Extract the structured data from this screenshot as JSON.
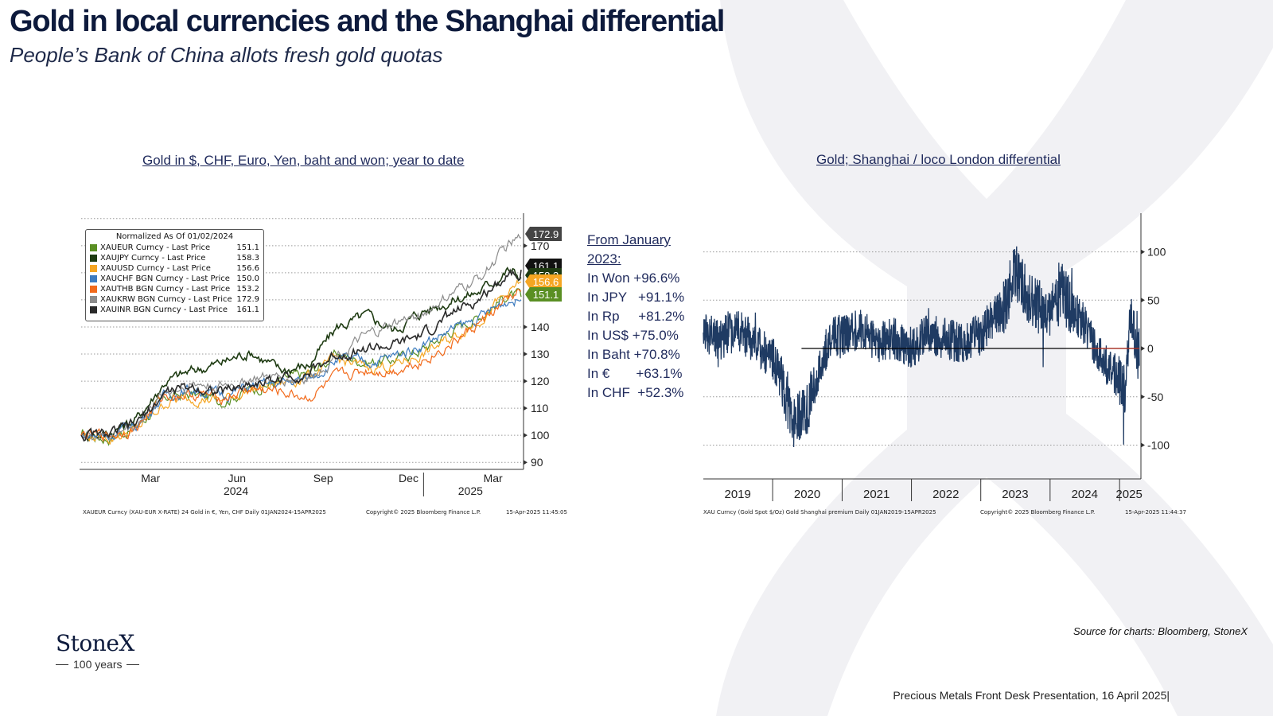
{
  "slide": {
    "title": "Gold in local currencies and the Shanghai differential",
    "subtitle": "People’s Bank of China allots fresh gold quotas",
    "source": "Source for charts: Bloomberg, StoneX",
    "footer": "Precious Metals Front Desk Presentation, 16 April 2025|",
    "logo_text": "StoneX",
    "logo_sub": "100 years"
  },
  "colors": {
    "navy": "#1f3b63",
    "eur": "#5a8f23",
    "jpy": "#1e3b12",
    "usd": "#f5a623",
    "chf": "#3d7bbf",
    "thb": "#f26a1b",
    "krw": "#8c8c8c",
    "inr": "#2a2a2a"
  },
  "performance": {
    "heading_line1": "From January",
    "heading_line2": "2023:",
    "rows": [
      {
        "label": "In Won",
        "gap": " ",
        "value": "+96.6%"
      },
      {
        "label": "In JPY",
        "gap": "   ",
        "value": "+91.1%"
      },
      {
        "label": "In Rp",
        "gap": "     ",
        "value": "+81.2%"
      },
      {
        "label": "In US$",
        "gap": " ",
        "value": "+75.0%"
      },
      {
        "label": "In Baht",
        "gap": " ",
        "value": "+70.8%"
      },
      {
        "label": "In €",
        "gap": "       ",
        "value": "+63.1%"
      },
      {
        "label": "In CHF",
        "gap": "  ",
        "value": "+52.3%"
      }
    ]
  },
  "chart_data": [
    {
      "type": "line",
      "title": "Gold in $, CHF, Euro, Yen, baht and won; year to date",
      "legend_title": "Normalized As Of 01/02/2024",
      "legend_position": "top-left",
      "x_ticks": [
        "Mar",
        "Jun",
        "Sep",
        "Dec",
        "Mar"
      ],
      "x_years": [
        "2024",
        "2025"
      ],
      "y_ticks": [
        90,
        100,
        110,
        120,
        130,
        140,
        170
      ],
      "ylim": [
        88,
        182
      ],
      "grid": true,
      "end_labels": [
        "172.9",
        "161.1",
        "158.3",
        "156.6",
        "151.1"
      ],
      "footnote_left": "XAUEUR Curncy (XAU-EUR X-RATE) 24 Gold in €, Yen, CHF  Daily 01JAN2024-15APR2025",
      "footnote_mid": "Copyright© 2025 Bloomberg Finance L.P.",
      "footnote_right": "15-Apr-2025 11:45:05",
      "x": [
        "2024-01-02",
        "2024-02-01",
        "2024-03-01",
        "2024-04-01",
        "2024-05-01",
        "2024-06-01",
        "2024-07-01",
        "2024-08-01",
        "2024-09-01",
        "2024-10-01",
        "2024-11-01",
        "2024-12-01",
        "2025-01-01",
        "2025-02-01",
        "2025-03-01",
        "2025-04-01",
        "2025-04-15"
      ],
      "series": [
        {
          "name": "XAUEUR Curncy - Last Price",
          "value": "151.1",
          "color_key": "eur",
          "values": [
            100,
            99,
            103,
            114,
            115,
            113,
            117,
            120,
            123,
            130,
            127,
            128,
            132,
            139,
            144,
            152,
            151.1
          ]
        },
        {
          "name": "XAUJPY Curncy - Last Price",
          "value": "158.3",
          "color_key": "jpy",
          "values": [
            100,
            101,
            106,
            120,
            124,
            127,
            131,
            124,
            126,
            140,
            144,
            139,
            146,
            150,
            153,
            161,
            158.3
          ]
        },
        {
          "name": "XAUUSD Curncy - Last Price",
          "value": "156.6",
          "color_key": "usd",
          "values": [
            100,
            99,
            102,
            112,
            114,
            113,
            117,
            119,
            122,
            128,
            125,
            126,
            130,
            136,
            143,
            152,
            156.6
          ]
        },
        {
          "name": "XAUCHF BGN Curncy - Last Price",
          "value": "150.0",
          "color_key": "chf",
          "values": [
            100,
            100,
            104,
            115,
            117,
            115,
            118,
            119,
            121,
            128,
            127,
            129,
            134,
            139,
            143,
            150,
            150.0
          ]
        },
        {
          "name": "XAUTHB BGN Curncy - Last Price",
          "value": "153.2",
          "color_key": "thb",
          "values": [
            100,
            100,
            103,
            115,
            115,
            114,
            117,
            116,
            114,
            121,
            124,
            124,
            128,
            134,
            141,
            150,
            153.2
          ]
        },
        {
          "name": "XAUKRW BGN Curncy - Last Price",
          "value": "172.9",
          "color_key": "krw",
          "values": [
            100,
            100,
            104,
            116,
            119,
            118,
            121,
            121,
            121,
            130,
            136,
            141,
            145,
            152,
            158,
            170,
            172.9
          ]
        },
        {
          "name": "XAUINR BGN Curncy - Last Price",
          "value": "161.1",
          "color_key": "inr",
          "values": [
            100,
            100,
            104,
            116,
            118,
            116,
            119,
            121,
            123,
            130,
            132,
            133,
            137,
            145,
            150,
            160,
            161.1
          ]
        }
      ]
    },
    {
      "type": "line",
      "title": "Gold; Shanghai / loco London differential",
      "x_ticks": [
        "2019",
        "2020",
        "2021",
        "2022",
        "2023",
        "2024",
        "2025"
      ],
      "y_ticks": [
        100,
        50,
        0,
        -50,
        -100
      ],
      "ylim": [
        -135,
        140
      ],
      "grid": true,
      "footnote_left": "XAU Curncy (Gold Spot  $/Oz) Gold Shanghai premium  Daily 01JAN2019-15APR2025",
      "footnote_mid": "Copyright© 2025 Bloomberg Finance L.P.",
      "footnote_right": "15-Apr-2025 11:44:37",
      "x": [
        "2019-01",
        "2019-04",
        "2019-07",
        "2019-10",
        "2020-01",
        "2020-03",
        "2020-05",
        "2020-07",
        "2020-09",
        "2020-11",
        "2021-01",
        "2021-04",
        "2021-07",
        "2021-10",
        "2022-01",
        "2022-04",
        "2022-07",
        "2022-10",
        "2023-01",
        "2023-03",
        "2023-05",
        "2023-07",
        "2023-09",
        "2023-11",
        "2024-01",
        "2024-03",
        "2024-05",
        "2024-07",
        "2024-09",
        "2024-11",
        "2025-01",
        "2025-02",
        "2025-03",
        "2025-04"
      ],
      "values": [
        15,
        10,
        20,
        5,
        -10,
        -40,
        -80,
        -60,
        -20,
        10,
        15,
        20,
        5,
        10,
        0,
        15,
        10,
        5,
        15,
        30,
        40,
        80,
        55,
        45,
        35,
        60,
        40,
        25,
        0,
        -20,
        -30,
        -40,
        40,
        0
      ]
    }
  ]
}
